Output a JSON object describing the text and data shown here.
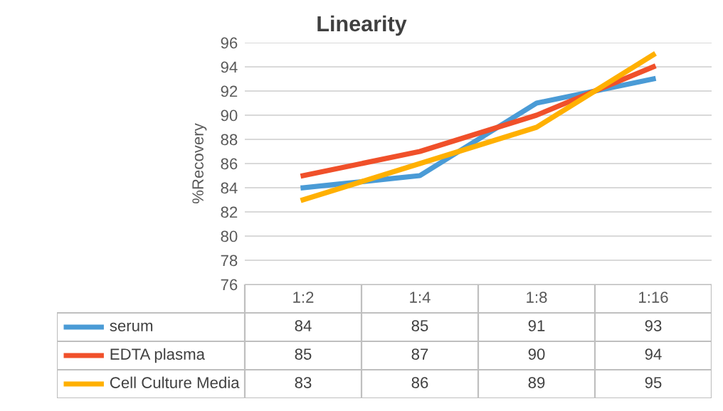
{
  "chart_data": {
    "type": "line",
    "title": "Linearity",
    "ylabel": "%Recovery",
    "categories": [
      "1:2",
      "1:4",
      "1:8",
      "1:16"
    ],
    "series": [
      {
        "name": "serum",
        "color": "#4a9bd6",
        "values": [
          84,
          85,
          91,
          93
        ]
      },
      {
        "name": "EDTA plasma",
        "color": "#f0502a",
        "values": [
          85,
          87,
          90,
          94
        ]
      },
      {
        "name": "Cell Culture Media",
        "color": "#ffb000",
        "values": [
          83,
          86,
          89,
          95
        ]
      }
    ],
    "ylim": [
      76,
      96
    ],
    "yticks": [
      76,
      78,
      80,
      82,
      84,
      86,
      88,
      90,
      92,
      94,
      96
    ],
    "grid": "y",
    "legend": "bottom",
    "data_labels": true,
    "marker": "none",
    "line_style": "solid"
  }
}
